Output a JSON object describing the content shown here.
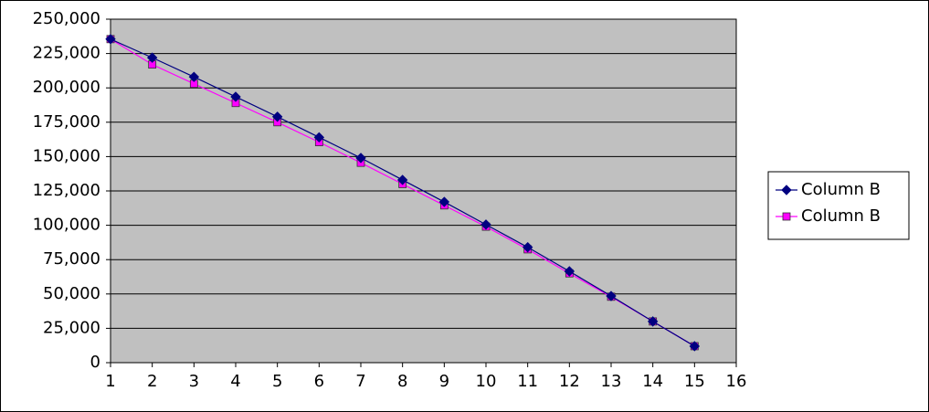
{
  "chart_data": {
    "type": "line",
    "x": [
      1,
      2,
      3,
      4,
      5,
      6,
      7,
      8,
      9,
      10,
      11,
      12,
      13,
      14,
      15
    ],
    "series": [
      {
        "name": "Column B",
        "color": "#000080",
        "marker": "diamond",
        "values": [
          235500,
          222000,
          208000,
          193500,
          179000,
          164000,
          149000,
          133000,
          117000,
          100500,
          84000,
          66500,
          48500,
          30000,
          12000
        ]
      },
      {
        "name": "Column B",
        "color": "#ff00ff",
        "marker": "square",
        "values": [
          235500,
          217000,
          203000,
          189000,
          175000,
          160500,
          145500,
          130000,
          114500,
          99000,
          82500,
          65000,
          48000,
          30000,
          12000
        ]
      }
    ],
    "xlim": [
      1,
      16
    ],
    "xticks": [
      1,
      2,
      3,
      4,
      5,
      6,
      7,
      8,
      9,
      10,
      11,
      12,
      13,
      14,
      15,
      16
    ],
    "ylim": [
      0,
      250000
    ],
    "yticks": [
      0,
      {
        "value": 25000,
        "label": "25,000"
      },
      {
        "value": 50000,
        "label": "50,000"
      },
      {
        "value": 75000,
        "label": "75,000"
      },
      {
        "value": 100000,
        "label": "100,000"
      },
      {
        "value": 125000,
        "label": "125,000"
      },
      {
        "value": 150000,
        "label": "150,000"
      },
      {
        "value": 175000,
        "label": "175,000"
      },
      {
        "value": 200000,
        "label": "200,000"
      },
      {
        "value": 225000,
        "label": "225,000"
      },
      {
        "value": 250000,
        "label": "250,000"
      }
    ],
    "grid": true,
    "legend": "right",
    "plot_background": "#c0c0c0"
  }
}
